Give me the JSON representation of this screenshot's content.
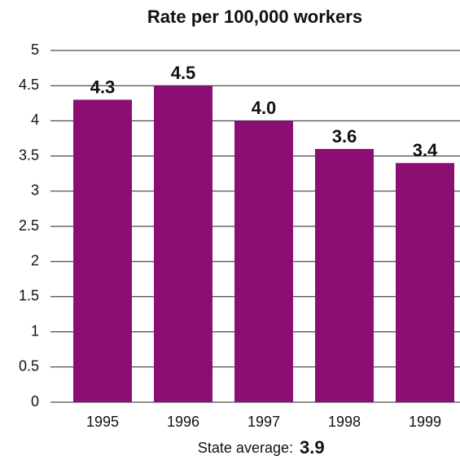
{
  "chart_data": {
    "type": "bar",
    "title": "Rate per 100,000 workers",
    "categories": [
      "1995",
      "1996",
      "1997",
      "1998",
      "1999"
    ],
    "values": [
      4.3,
      4.5,
      4.0,
      3.6,
      3.4
    ],
    "value_labels": [
      "4.3",
      "4.5",
      "4.0",
      "3.6",
      "3.4"
    ],
    "color": "#8b0f73",
    "ylim": [
      0,
      5
    ],
    "yticks": [
      0,
      0.5,
      1,
      1.5,
      2,
      2.5,
      3,
      3.5,
      4,
      4.5,
      5
    ],
    "grid": true,
    "annotation": {
      "text": "State average:",
      "value": 3.9
    }
  }
}
